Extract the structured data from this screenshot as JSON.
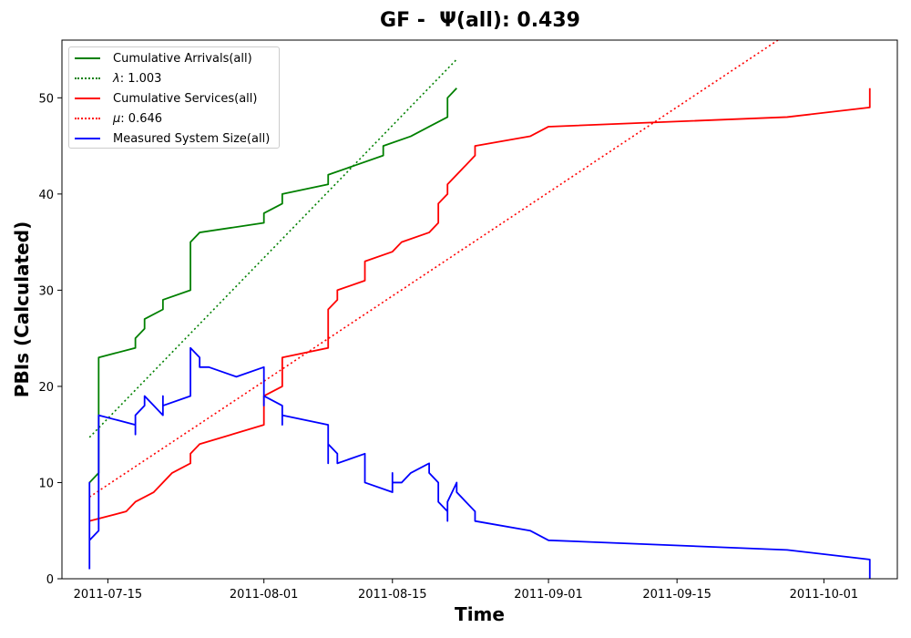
{
  "chart_data": {
    "type": "line",
    "title": "GF -  Ψ(all): 0.439",
    "xlabel": "Time",
    "ylabel": "PBIs (Calculated)",
    "xlim": [
      "2011-07-10",
      "2011-10-09"
    ],
    "ylim": [
      0,
      56
    ],
    "x_ticks": [
      "2011-07-15",
      "2011-08-01",
      "2011-08-15",
      "2011-09-01",
      "2011-09-15",
      "2011-10-01"
    ],
    "y_ticks": [
      0,
      10,
      20,
      30,
      40,
      50
    ],
    "grid": false,
    "legend_position": "top-left",
    "series": [
      {
        "name": "Cumulative Arrivals(all)",
        "style": "solid",
        "color": "#008000",
        "points": [
          [
            "2011-07-13",
            10
          ],
          [
            "2011-07-14",
            11
          ],
          [
            "2011-07-14",
            18
          ],
          [
            "2011-07-14",
            23
          ],
          [
            "2011-07-18",
            24
          ],
          [
            "2011-07-18",
            25
          ],
          [
            "2011-07-19",
            26
          ],
          [
            "2011-07-19",
            27
          ],
          [
            "2011-07-21",
            28
          ],
          [
            "2011-07-21",
            29
          ],
          [
            "2011-07-24",
            30
          ],
          [
            "2011-07-24",
            35
          ],
          [
            "2011-07-25",
            36
          ],
          [
            "2011-08-01",
            37
          ],
          [
            "2011-08-01",
            38
          ],
          [
            "2011-08-03",
            39
          ],
          [
            "2011-08-03",
            40
          ],
          [
            "2011-08-08",
            41
          ],
          [
            "2011-08-08",
            42
          ],
          [
            "2011-08-11",
            43
          ],
          [
            "2011-08-14",
            44
          ],
          [
            "2011-08-14",
            45
          ],
          [
            "2011-08-17",
            46
          ],
          [
            "2011-08-19",
            47
          ],
          [
            "2011-08-21",
            48
          ],
          [
            "2011-08-21",
            49
          ],
          [
            "2011-08-21",
            50
          ],
          [
            "2011-08-22",
            51
          ]
        ]
      },
      {
        "name": "λ: 1.003",
        "label_symbol": "λ",
        "label_rest": ": 1.003",
        "style": "dotted",
        "color": "#008000",
        "points": [
          [
            "2011-07-13",
            14.7
          ],
          [
            "2011-08-22",
            54
          ]
        ]
      },
      {
        "name": "Cumulative Services(all)",
        "style": "solid",
        "color": "#ff0000",
        "points": [
          [
            "2011-07-13",
            6
          ],
          [
            "2011-07-17",
            7
          ],
          [
            "2011-07-18",
            8
          ],
          [
            "2011-07-20",
            9
          ],
          [
            "2011-07-22",
            11
          ],
          [
            "2011-07-24",
            12
          ],
          [
            "2011-07-24",
            13
          ],
          [
            "2011-07-25",
            14
          ],
          [
            "2011-08-01",
            16
          ],
          [
            "2011-08-01",
            19
          ],
          [
            "2011-08-03",
            20
          ],
          [
            "2011-08-03",
            23
          ],
          [
            "2011-08-08",
            24
          ],
          [
            "2011-08-08",
            26
          ],
          [
            "2011-08-08",
            28
          ],
          [
            "2011-08-09",
            29
          ],
          [
            "2011-08-09",
            30
          ],
          [
            "2011-08-12",
            31
          ],
          [
            "2011-08-12",
            33
          ],
          [
            "2011-08-15",
            34
          ],
          [
            "2011-08-16",
            35
          ],
          [
            "2011-08-19",
            36
          ],
          [
            "2011-08-20",
            37
          ],
          [
            "2011-08-20",
            39
          ],
          [
            "2011-08-21",
            40
          ],
          [
            "2011-08-21",
            41
          ],
          [
            "2011-08-23",
            43
          ],
          [
            "2011-08-24",
            44
          ],
          [
            "2011-08-24",
            45
          ],
          [
            "2011-08-30",
            46
          ],
          [
            "2011-09-01",
            47
          ],
          [
            "2011-09-27",
            48
          ],
          [
            "2011-10-06",
            49
          ],
          [
            "2011-10-06",
            51
          ]
        ]
      },
      {
        "name": "μ: 0.646",
        "label_symbol": "μ",
        "label_rest": ": 0.646",
        "style": "dotted",
        "color": "#ff0000",
        "points": [
          [
            "2011-07-13",
            8.5
          ],
          [
            "2011-09-26",
            56
          ]
        ]
      },
      {
        "name": "Measured System Size(all)",
        "style": "solid",
        "color": "#0000ff",
        "points": [
          [
            "2011-07-13",
            1
          ],
          [
            "2011-07-13",
            10
          ],
          [
            "2011-07-13",
            4
          ],
          [
            "2011-07-14",
            5
          ],
          [
            "2011-07-14",
            16
          ],
          [
            "2011-07-14",
            17
          ],
          [
            "2011-07-18",
            16
          ],
          [
            "2011-07-18",
            15
          ],
          [
            "2011-07-18",
            17
          ],
          [
            "2011-07-19",
            18
          ],
          [
            "2011-07-19",
            19
          ],
          [
            "2011-07-20",
            18
          ],
          [
            "2011-07-21",
            17
          ],
          [
            "2011-07-21",
            19
          ],
          [
            "2011-07-21",
            18
          ],
          [
            "2011-07-24",
            19
          ],
          [
            "2011-07-24",
            24
          ],
          [
            "2011-07-25",
            23
          ],
          [
            "2011-07-25",
            22
          ],
          [
            "2011-07-26",
            22
          ],
          [
            "2011-07-29",
            21
          ],
          [
            "2011-08-01",
            22
          ],
          [
            "2011-08-01",
            18
          ],
          [
            "2011-08-01",
            19
          ],
          [
            "2011-08-03",
            18
          ],
          [
            "2011-08-03",
            16
          ],
          [
            "2011-08-03",
            17
          ],
          [
            "2011-08-08",
            16
          ],
          [
            "2011-08-08",
            14
          ],
          [
            "2011-08-08",
            12
          ],
          [
            "2011-08-08",
            14
          ],
          [
            "2011-08-09",
            13
          ],
          [
            "2011-08-09",
            12
          ],
          [
            "2011-08-12",
            13
          ],
          [
            "2011-08-12",
            12
          ],
          [
            "2011-08-12",
            10
          ],
          [
            "2011-08-15",
            9
          ],
          [
            "2011-08-15",
            11
          ],
          [
            "2011-08-15",
            10
          ],
          [
            "2011-08-16",
            10
          ],
          [
            "2011-08-17",
            11
          ],
          [
            "2011-08-19",
            12
          ],
          [
            "2011-08-19",
            11
          ],
          [
            "2011-08-20",
            10
          ],
          [
            "2011-08-20",
            8
          ],
          [
            "2011-08-21",
            7
          ],
          [
            "2011-08-21",
            6
          ],
          [
            "2011-08-21",
            8
          ],
          [
            "2011-08-22",
            10
          ],
          [
            "2011-08-22",
            9
          ],
          [
            "2011-08-23",
            8
          ],
          [
            "2011-08-24",
            7
          ],
          [
            "2011-08-24",
            6
          ],
          [
            "2011-08-30",
            5
          ],
          [
            "2011-09-01",
            4
          ],
          [
            "2011-09-27",
            3
          ],
          [
            "2011-10-06",
            2
          ],
          [
            "2011-10-06",
            0
          ]
        ]
      }
    ]
  }
}
